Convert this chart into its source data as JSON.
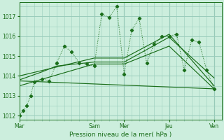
{
  "bg_color": "#cceedd",
  "grid_color": "#99ccbb",
  "line_color": "#1a6e1a",
  "title": "Pression niveau de la mer( hPa )",
  "ylim": [
    1011.8,
    1017.7
  ],
  "yticks": [
    1012,
    1013,
    1014,
    1015,
    1016,
    1017
  ],
  "xlim": [
    0,
    27
  ],
  "xtick_labels": [
    "Mar",
    "Sam",
    "Mer",
    "Jeu",
    "Ven"
  ],
  "xtick_positions": [
    0,
    10,
    14,
    20,
    26
  ],
  "vline_positions": [
    0,
    10,
    14,
    20,
    26
  ],
  "series1_x": [
    0,
    0.5,
    1,
    1.5,
    2,
    3,
    4,
    5,
    6,
    7,
    8,
    9,
    10,
    11,
    12,
    13,
    14,
    15,
    16,
    17,
    18,
    19,
    20,
    21,
    22,
    23,
    24,
    25,
    26
  ],
  "series1_y": [
    1012.0,
    1012.25,
    1012.5,
    1013.0,
    1013.7,
    1013.85,
    1013.75,
    1014.65,
    1015.5,
    1015.2,
    1014.65,
    1014.6,
    1014.5,
    1017.1,
    1016.95,
    1017.5,
    1014.1,
    1016.3,
    1016.9,
    1014.65,
    1015.6,
    1016.0,
    1016.0,
    1016.1,
    1014.3,
    1015.8,
    1015.7,
    1014.3,
    1013.35
  ],
  "series2_x": [
    0,
    3,
    5,
    10,
    14,
    20,
    26
  ],
  "series2_y": [
    1013.8,
    1014.2,
    1014.5,
    1014.7,
    1014.7,
    1015.95,
    1013.9
  ],
  "series3_x": [
    0,
    10,
    14,
    20,
    26
  ],
  "series3_y": [
    1014.0,
    1014.9,
    1014.9,
    1016.1,
    1013.5
  ],
  "series4_x": [
    0,
    10,
    14,
    20,
    26
  ],
  "series4_y": [
    1013.5,
    1014.6,
    1014.6,
    1015.5,
    1013.35
  ],
  "series5_x": [
    0,
    26
  ],
  "series5_y": [
    1013.75,
    1013.35
  ]
}
